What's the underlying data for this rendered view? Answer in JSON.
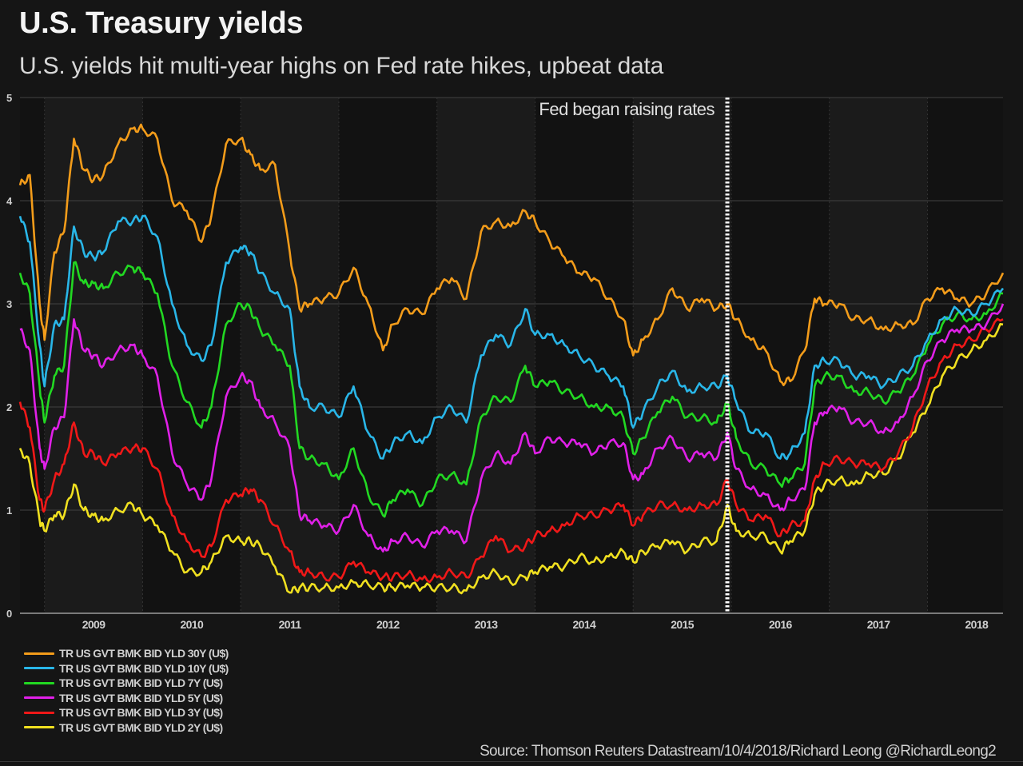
{
  "header": {
    "title": "U.S. Treasury yields",
    "subtitle": "U.S. yields hit multi-year highs on Fed rate hikes, upbeat data"
  },
  "source": "Source: Thomson Reuters Datastream/10/4/2018/Richard Leong @RichardLeong2",
  "chart_data": {
    "type": "line",
    "title": "U.S. Treasury yields",
    "subtitle": "U.S. yields hit multi-year highs on Fed rate hikes, upbeat data",
    "xlabel": "",
    "ylabel": "",
    "xlim": [
      2008.75,
      2018.77
    ],
    "ylim": [
      0,
      5
    ],
    "yticks": [
      0,
      1,
      2,
      3,
      4,
      5
    ],
    "xtick_labels": [
      "2009",
      "2010",
      "2011",
      "2012",
      "2013",
      "2014",
      "2015",
      "2016",
      "2017",
      "2018"
    ],
    "grid": true,
    "alternating_year_shading": true,
    "legend_position": "bottom-left",
    "annotation": {
      "text": "Fed began raising rates",
      "x": 2015.96,
      "style": "dotted-vertical-line"
    },
    "x": [
      2008.75,
      2008.85,
      2008.95,
      2009.0,
      2009.1,
      2009.2,
      2009.3,
      2009.4,
      2009.5,
      2009.6,
      2009.75,
      2009.9,
      2010.0,
      2010.15,
      2010.3,
      2010.45,
      2010.6,
      2010.7,
      2010.85,
      2011.0,
      2011.1,
      2011.2,
      2011.35,
      2011.5,
      2011.6,
      2011.7,
      2011.85,
      2012.0,
      2012.15,
      2012.3,
      2012.45,
      2012.55,
      2012.7,
      2012.85,
      2013.0,
      2013.15,
      2013.3,
      2013.45,
      2013.6,
      2013.75,
      2013.9,
      2014.0,
      2014.15,
      2014.3,
      2014.45,
      2014.6,
      2014.75,
      2014.9,
      2015.0,
      2015.1,
      2015.25,
      2015.4,
      2015.55,
      2015.7,
      2015.85,
      2015.96,
      2016.05,
      2016.2,
      2016.35,
      2016.5,
      2016.6,
      2016.75,
      2016.85,
      2016.95,
      2017.1,
      2017.25,
      2017.4,
      2017.55,
      2017.7,
      2017.85,
      2018.0,
      2018.15,
      2018.3,
      2018.45,
      2018.6,
      2018.77
    ],
    "series": [
      {
        "name": "TR US GVT BMK BID YLD 30Y (U$)",
        "color": "#f39c1a",
        "values": [
          4.15,
          4.25,
          3.0,
          2.65,
          3.5,
          3.7,
          4.6,
          4.3,
          4.2,
          4.25,
          4.55,
          4.7,
          4.7,
          4.6,
          4.0,
          3.9,
          3.6,
          3.85,
          4.55,
          4.6,
          4.45,
          4.3,
          4.35,
          3.5,
          2.95,
          3.0,
          3.05,
          3.1,
          3.35,
          3.0,
          2.55,
          2.8,
          2.95,
          2.9,
          3.15,
          3.25,
          3.05,
          3.7,
          3.8,
          3.75,
          3.9,
          3.8,
          3.6,
          3.45,
          3.3,
          3.25,
          3.05,
          2.85,
          2.5,
          2.65,
          2.85,
          3.15,
          2.95,
          3.05,
          2.95,
          3.0,
          2.85,
          2.65,
          2.55,
          2.25,
          2.25,
          2.55,
          3.05,
          3.0,
          3.0,
          2.85,
          2.85,
          2.75,
          2.8,
          2.8,
          3.05,
          3.15,
          3.05,
          3.0,
          3.1,
          3.3
        ]
      },
      {
        "name": "TR US GVT BMK BID YLD 10Y (U$)",
        "color": "#29b6e8",
        "values": [
          3.85,
          3.6,
          2.6,
          2.2,
          2.8,
          2.85,
          3.75,
          3.5,
          3.45,
          3.5,
          3.8,
          3.8,
          3.85,
          3.65,
          3.0,
          2.6,
          2.45,
          2.6,
          3.4,
          3.55,
          3.5,
          3.3,
          3.1,
          2.95,
          2.2,
          2.0,
          2.0,
          1.9,
          2.2,
          1.75,
          1.5,
          1.65,
          1.75,
          1.65,
          1.9,
          2.0,
          1.85,
          2.5,
          2.7,
          2.6,
          2.95,
          2.7,
          2.7,
          2.6,
          2.5,
          2.4,
          2.3,
          2.2,
          1.8,
          1.95,
          2.2,
          2.35,
          2.15,
          2.2,
          2.2,
          2.3,
          2.05,
          1.75,
          1.75,
          1.5,
          1.55,
          1.75,
          2.4,
          2.45,
          2.45,
          2.3,
          2.3,
          2.2,
          2.3,
          2.4,
          2.65,
          2.85,
          2.95,
          2.9,
          3.0,
          3.15
        ]
      },
      {
        "name": "TR US GVT BMK BID YLD 7Y (U$)",
        "color": "#22d822",
        "values": [
          3.3,
          3.1,
          2.2,
          1.85,
          2.3,
          2.4,
          3.4,
          3.2,
          3.2,
          3.15,
          3.3,
          3.35,
          3.3,
          3.1,
          2.4,
          2.05,
          1.8,
          2.0,
          2.8,
          3.0,
          2.95,
          2.75,
          2.6,
          2.4,
          1.6,
          1.5,
          1.45,
          1.3,
          1.6,
          1.15,
          0.95,
          1.1,
          1.2,
          1.05,
          1.3,
          1.35,
          1.25,
          1.9,
          2.1,
          2.05,
          2.4,
          2.2,
          2.25,
          2.15,
          2.1,
          2.0,
          2.0,
          1.9,
          1.55,
          1.7,
          1.95,
          2.1,
          1.9,
          1.9,
          1.85,
          2.05,
          1.7,
          1.45,
          1.4,
          1.25,
          1.3,
          1.45,
          2.2,
          2.3,
          2.3,
          2.15,
          2.15,
          2.05,
          2.15,
          2.3,
          2.6,
          2.8,
          2.9,
          2.85,
          2.9,
          3.1
        ]
      },
      {
        "name": "TR US GVT BMK BID YLD 5Y (U$)",
        "color": "#e020e8",
        "values": [
          2.75,
          2.55,
          1.6,
          1.4,
          1.8,
          1.9,
          2.85,
          2.55,
          2.5,
          2.4,
          2.55,
          2.6,
          2.5,
          2.3,
          1.55,
          1.25,
          1.1,
          1.3,
          2.1,
          2.3,
          2.25,
          2.0,
          1.85,
          1.6,
          0.95,
          0.9,
          0.85,
          0.8,
          1.05,
          0.75,
          0.6,
          0.7,
          0.75,
          0.65,
          0.8,
          0.8,
          0.7,
          1.3,
          1.55,
          1.45,
          1.75,
          1.55,
          1.7,
          1.65,
          1.65,
          1.55,
          1.65,
          1.65,
          1.3,
          1.35,
          1.6,
          1.7,
          1.5,
          1.55,
          1.5,
          1.75,
          1.4,
          1.2,
          1.15,
          1.0,
          1.1,
          1.2,
          1.85,
          1.95,
          2.0,
          1.85,
          1.85,
          1.75,
          1.85,
          2.1,
          2.45,
          2.65,
          2.75,
          2.75,
          2.8,
          3.0
        ]
      },
      {
        "name": "TR US GVT BMK BID YLD 3Y (U$)",
        "color": "#f01818",
        "values": [
          2.05,
          1.8,
          1.1,
          1.0,
          1.3,
          1.45,
          1.85,
          1.55,
          1.55,
          1.45,
          1.55,
          1.6,
          1.6,
          1.4,
          0.95,
          0.7,
          0.55,
          0.65,
          1.1,
          1.15,
          1.2,
          1.1,
          0.85,
          0.6,
          0.4,
          0.4,
          0.35,
          0.35,
          0.5,
          0.4,
          0.35,
          0.35,
          0.38,
          0.33,
          0.35,
          0.4,
          0.35,
          0.55,
          0.75,
          0.6,
          0.65,
          0.75,
          0.8,
          0.85,
          0.95,
          0.95,
          1.0,
          1.05,
          0.85,
          0.95,
          1.05,
          1.05,
          1.0,
          1.05,
          1.05,
          1.3,
          1.05,
          0.9,
          0.95,
          0.75,
          0.85,
          0.9,
          1.3,
          1.45,
          1.5,
          1.45,
          1.45,
          1.4,
          1.55,
          1.8,
          2.2,
          2.45,
          2.6,
          2.65,
          2.75,
          2.85
        ]
      },
      {
        "name": "TR US GVT BMK BID YLD 2Y (U$)",
        "color": "#f0e020",
        "values": [
          1.6,
          1.45,
          0.9,
          0.8,
          0.95,
          0.95,
          1.25,
          1.0,
          0.95,
          0.9,
          1.0,
          1.05,
          0.95,
          0.85,
          0.6,
          0.4,
          0.4,
          0.5,
          0.75,
          0.7,
          0.7,
          0.65,
          0.45,
          0.2,
          0.25,
          0.25,
          0.25,
          0.25,
          0.3,
          0.28,
          0.25,
          0.25,
          0.27,
          0.25,
          0.25,
          0.25,
          0.22,
          0.35,
          0.4,
          0.3,
          0.35,
          0.4,
          0.45,
          0.45,
          0.55,
          0.5,
          0.55,
          0.6,
          0.5,
          0.6,
          0.65,
          0.7,
          0.6,
          0.7,
          0.7,
          1.05,
          0.8,
          0.75,
          0.75,
          0.6,
          0.7,
          0.8,
          1.15,
          1.25,
          1.3,
          1.25,
          1.35,
          1.35,
          1.5,
          1.75,
          2.0,
          2.3,
          2.45,
          2.55,
          2.65,
          2.8
        ]
      }
    ]
  }
}
